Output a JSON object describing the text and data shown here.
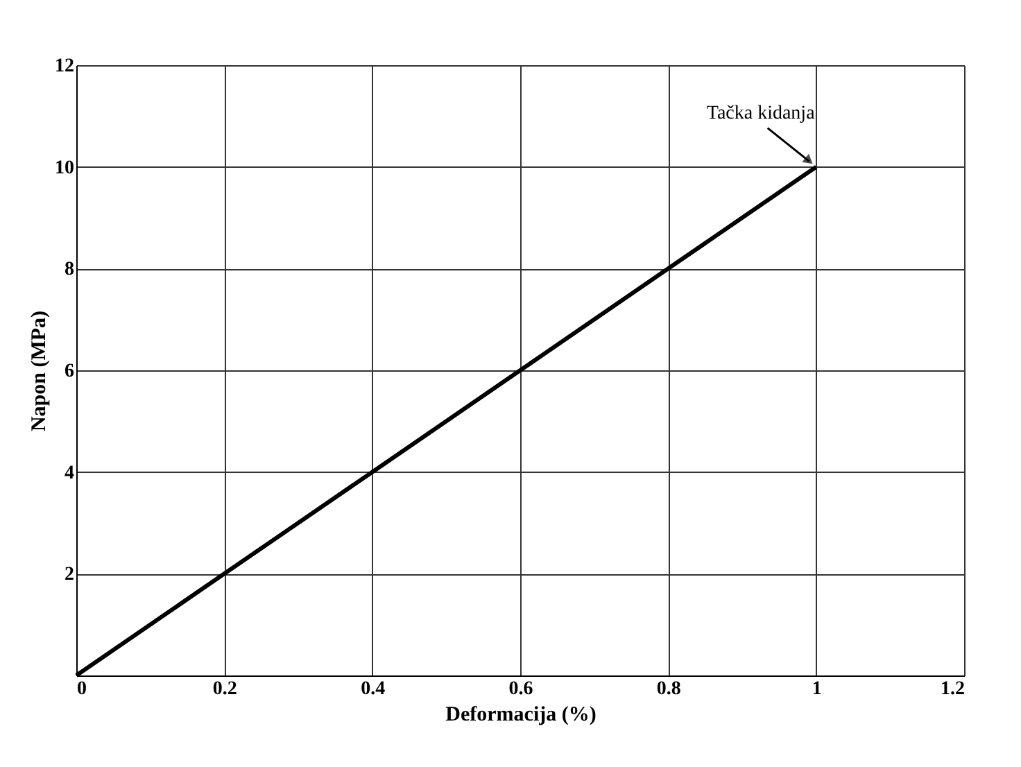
{
  "chart_data": {
    "type": "line",
    "xlabel": "Deformacija (%)",
    "ylabel": "Napon (MPa)",
    "x": [
      0,
      0.2,
      0.4,
      0.6,
      0.8,
      1
    ],
    "series": [
      {
        "color": "#000000",
        "values": [
          0,
          2,
          4,
          6,
          8,
          10
        ]
      }
    ],
    "xlim": [
      0,
      1.2
    ],
    "xticks": [
      0,
      0.2,
      0.4,
      0.6,
      0.8,
      1,
      1.2
    ],
    "ylim": [
      0,
      12
    ],
    "yticks": [
      2,
      4,
      6,
      8,
      10,
      12
    ],
    "grid": true,
    "marker": "none",
    "line_style": "solid",
    "annotations": [
      {
        "text": "Tačka kidanja",
        "x": 1,
        "y": 10
      }
    ]
  }
}
